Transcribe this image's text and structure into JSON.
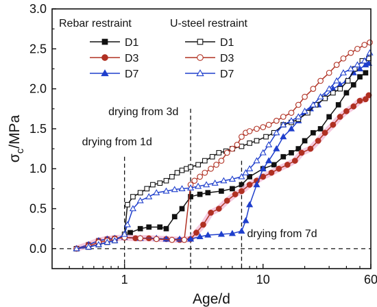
{
  "chart_data": {
    "type": "line",
    "title": "",
    "xlabel": "Age/d",
    "ylabel_main": "σ",
    "ylabel_sub": "c",
    "ylabel_rest": "/MPa",
    "xscale": "log",
    "xlim": [
      0.3,
      60
    ],
    "ylim": [
      -0.25,
      3.0
    ],
    "x_ticks": [
      1,
      10,
      60
    ],
    "x_tick_labels": [
      "1",
      "10",
      "60"
    ],
    "y_ticks": [
      0.0,
      0.5,
      1.0,
      1.5,
      2.0,
      2.5,
      3.0
    ],
    "y_tick_labels": [
      "0.0",
      "0.5",
      "1.0",
      "1.5",
      "2.0",
      "2.5",
      "3.0"
    ],
    "grid": false,
    "legend_groups": [
      "Rebar restraint",
      "U-steel restraint"
    ],
    "colors": {
      "D1": "#111111",
      "D3": "#b03022",
      "D7": "#1f3fcc",
      "highlight": "#f2b8d4"
    },
    "zero_line": true,
    "drying_lines": [
      {
        "x": 1,
        "ytop": 1.15,
        "label": "drying from 1d"
      },
      {
        "x": 3,
        "ytop": 1.75,
        "label": "drying from 3d"
      },
      {
        "x": 7,
        "ytop": 1.1,
        "label": "drying from 7d"
      }
    ],
    "series": [
      {
        "name": "D1",
        "group": "Rebar restraint",
        "marker": "square",
        "filled": true,
        "x": [
          0.45,
          0.55,
          0.65,
          0.75,
          0.85,
          1.0,
          1.1,
          1.3,
          1.5,
          1.8,
          2.0,
          2.3,
          2.6,
          3.0,
          3.5,
          4.0,
          5.0,
          6.0,
          7.0,
          8.0,
          10.0,
          12.0,
          14.0,
          16.0,
          18.0,
          20.0,
          23.0,
          26.0,
          30.0,
          35.0,
          40.0,
          45.0,
          50.0,
          55.0
        ],
        "y": [
          0.0,
          0.05,
          0.1,
          0.12,
          0.13,
          0.15,
          0.2,
          0.25,
          0.27,
          0.27,
          0.25,
          0.4,
          0.5,
          0.65,
          0.68,
          0.7,
          0.72,
          0.75,
          0.8,
          0.9,
          1.0,
          1.05,
          1.15,
          1.2,
          1.25,
          1.35,
          1.45,
          1.5,
          1.65,
          1.8,
          1.95,
          2.05,
          2.15,
          2.2
        ]
      },
      {
        "name": "D3",
        "group": "Rebar restraint",
        "marker": "circle",
        "filled": true,
        "x": [
          0.45,
          0.55,
          0.65,
          0.75,
          0.85,
          1.0,
          1.2,
          1.5,
          2.0,
          2.5,
          3.0,
          3.3,
          3.7,
          4.2,
          4.8,
          5.5,
          6.3,
          7.0,
          8.0,
          9.0,
          10.0,
          11.5,
          13.0,
          15.0,
          17.0,
          19.0,
          22.0,
          25.0,
          28.0,
          32.0,
          36.0,
          40.0,
          45.0,
          50.0,
          55.0,
          58.0
        ],
        "y": [
          0.0,
          0.05,
          0.1,
          0.12,
          0.13,
          0.14,
          0.13,
          0.13,
          0.12,
          0.11,
          0.12,
          0.2,
          0.3,
          0.45,
          0.5,
          0.6,
          0.68,
          0.72,
          0.8,
          0.85,
          0.9,
          0.95,
          1.0,
          1.05,
          1.1,
          1.2,
          1.25,
          1.35,
          1.45,
          1.55,
          1.65,
          1.72,
          1.78,
          1.85,
          1.87,
          1.92
        ]
      },
      {
        "name": "D7",
        "group": "Rebar restraint",
        "marker": "triangle",
        "filled": true,
        "x": [
          0.45,
          0.55,
          0.65,
          0.75,
          0.85,
          1.0,
          1.3,
          1.7,
          2.0,
          2.5,
          3.0,
          3.5,
          4.0,
          5.0,
          6.0,
          7.0,
          7.5,
          8.0,
          9.0,
          10.0,
          11.0,
          12.5,
          14.0,
          16.0,
          18.0,
          20.0,
          22.0,
          25.0,
          28.0,
          32.0,
          36.0,
          40.0,
          45.0,
          50.0,
          55.0,
          58.0
        ],
        "y": [
          0.0,
          0.05,
          0.1,
          0.12,
          0.13,
          0.14,
          0.13,
          0.13,
          0.12,
          0.12,
          0.12,
          0.15,
          0.17,
          0.18,
          0.19,
          0.22,
          0.35,
          0.55,
          0.8,
          1.0,
          1.1,
          1.25,
          1.4,
          1.5,
          1.6,
          1.7,
          1.75,
          1.8,
          1.9,
          2.0,
          2.05,
          2.1,
          2.2,
          2.25,
          2.3,
          2.32
        ]
      },
      {
        "name": "D1",
        "group": "U-steel restraint",
        "marker": "square",
        "filled": false,
        "x": [
          0.45,
          0.55,
          0.65,
          0.75,
          0.85,
          1.0,
          1.05,
          1.15,
          1.3,
          1.45,
          1.6,
          1.8,
          2.0,
          2.2,
          2.4,
          2.6,
          2.8,
          3.0,
          3.4,
          3.8,
          4.3,
          4.8,
          5.4,
          6.0,
          7.0,
          8.0,
          9.0,
          10.5,
          12.0,
          14.0,
          16.0,
          18.0,
          21.0,
          24.0,
          28.0,
          32.0,
          36.0,
          41.0,
          46.0,
          52.0,
          58.0
        ],
        "y": [
          0.0,
          0.02,
          0.05,
          0.08,
          0.1,
          0.18,
          0.55,
          0.65,
          0.7,
          0.75,
          0.8,
          0.82,
          0.85,
          0.9,
          0.95,
          0.98,
          1.0,
          1.02,
          1.05,
          1.1,
          1.15,
          1.2,
          1.22,
          1.25,
          1.28,
          1.32,
          1.35,
          1.4,
          1.45,
          1.55,
          1.58,
          1.62,
          1.7,
          1.8,
          1.88,
          1.95,
          2.0,
          2.1,
          2.25,
          2.35,
          2.38
        ]
      },
      {
        "name": "D3",
        "group": "U-steel restraint",
        "marker": "circle",
        "filled": false,
        "x": [
          0.45,
          0.55,
          0.65,
          0.75,
          0.85,
          1.0,
          1.3,
          1.7,
          2.2,
          2.7,
          3.0,
          3.2,
          3.5,
          3.8,
          4.2,
          4.6,
          5.0,
          5.5,
          6.0,
          6.5,
          7.0,
          7.5,
          8.0,
          9.0,
          10.0,
          11.0,
          12.5,
          14.0,
          16.0,
          18.0,
          20.0,
          23.0,
          26.0,
          30.0,
          34.0,
          38.0,
          43.0,
          48.0,
          54.0,
          59.0
        ],
        "y": [
          0.0,
          0.03,
          0.08,
          0.1,
          0.12,
          0.14,
          0.13,
          0.12,
          0.11,
          0.11,
          0.8,
          0.85,
          0.9,
          0.95,
          1.0,
          1.05,
          1.1,
          1.2,
          1.25,
          1.3,
          1.4,
          1.45,
          1.47,
          1.5,
          1.52,
          1.55,
          1.6,
          1.65,
          1.7,
          1.8,
          1.9,
          2.0,
          2.1,
          2.2,
          2.3,
          2.38,
          2.45,
          2.5,
          2.55,
          2.58
        ]
      },
      {
        "name": "D7",
        "group": "U-steel restraint",
        "marker": "triangle",
        "filled": false,
        "x": [
          0.45,
          0.55,
          0.65,
          0.75,
          0.85,
          1.0,
          1.05,
          1.15,
          1.3,
          1.5,
          1.7,
          2.0,
          2.3,
          2.6,
          3.0,
          3.4,
          3.9,
          4.5,
          5.2,
          6.0,
          7.0,
          7.5,
          8.0,
          9.0,
          10.0,
          11.0,
          12.5,
          14.0,
          16.0,
          18.0,
          20.0,
          23.0,
          26.0,
          30.0,
          34.0,
          38.0,
          43.0,
          48.0,
          54.0,
          59.0
        ],
        "y": [
          0.0,
          0.02,
          0.05,
          0.08,
          0.1,
          0.18,
          0.3,
          0.5,
          0.6,
          0.65,
          0.7,
          0.72,
          0.74,
          0.75,
          0.76,
          0.78,
          0.8,
          0.82,
          0.85,
          0.87,
          0.9,
          0.95,
          1.0,
          1.1,
          1.2,
          1.3,
          1.45,
          1.55,
          1.6,
          1.65,
          1.72,
          1.8,
          1.9,
          2.0,
          2.1,
          2.2,
          2.25,
          2.3,
          2.35,
          2.45
        ]
      }
    ]
  }
}
